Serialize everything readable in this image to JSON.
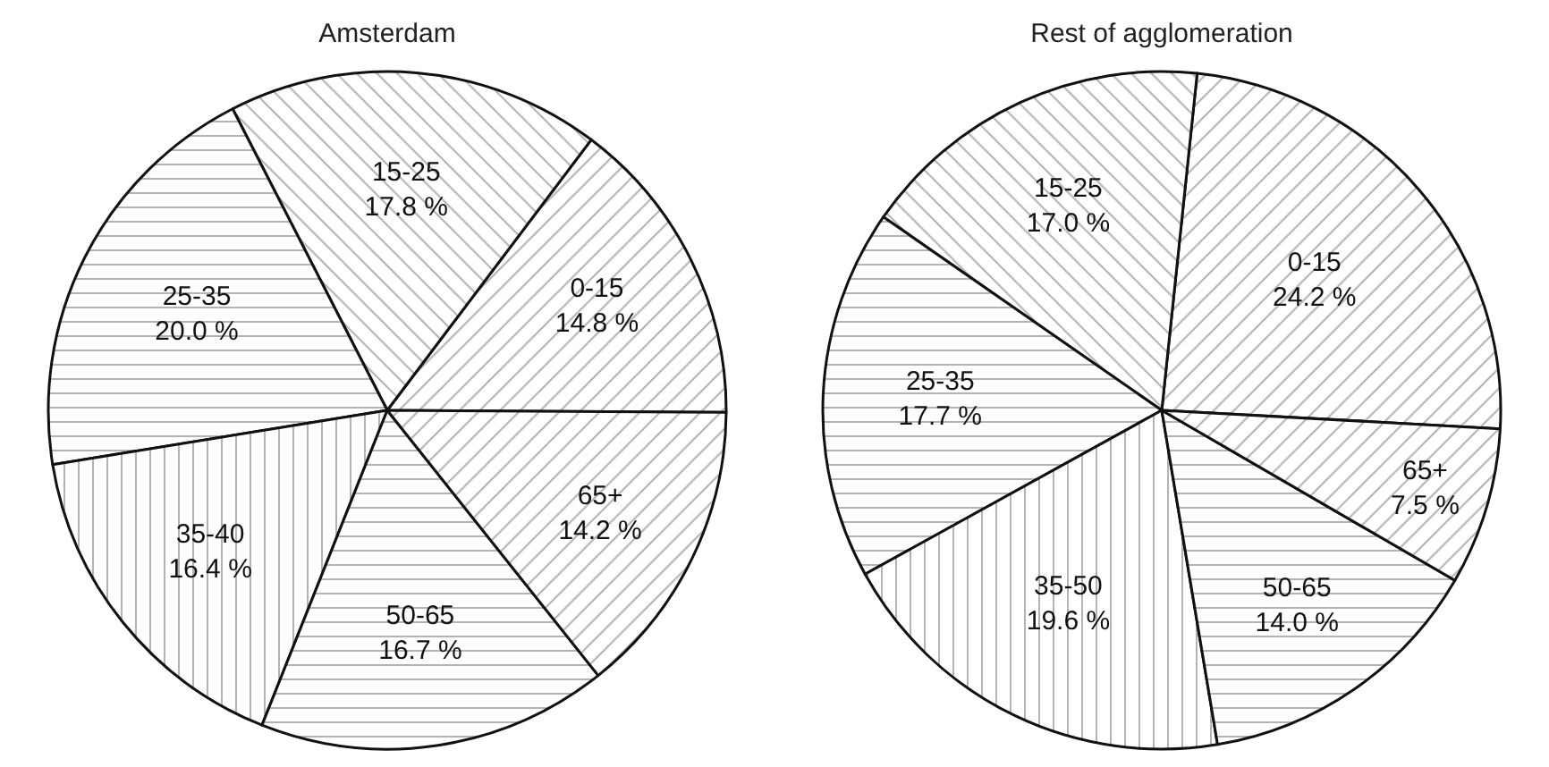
{
  "chart_data": [
    {
      "type": "pie",
      "title": "Amsterdam",
      "categories": [
        "0-15",
        "15-25",
        "25-35",
        "35-40",
        "50-65",
        "65+"
      ],
      "values": [
        14.8,
        17.8,
        20.0,
        16.4,
        16.7,
        14.2
      ],
      "value_labels": [
        "14.8 %",
        "17.8 %",
        "20.0 %",
        "16.4 %",
        "16.7 %",
        "14.2 %"
      ],
      "legend": false
    },
    {
      "type": "pie",
      "title": "Rest of agglomeration",
      "categories": [
        "0-15",
        "15-25",
        "25-35",
        "35-50",
        "50-65",
        "65+"
      ],
      "values": [
        24.2,
        17.0,
        17.7,
        19.6,
        14.0,
        7.5
      ],
      "value_labels": [
        "24.2 %",
        "17.0 %",
        "17.7 %",
        "19.6 %",
        "14.0 %",
        "7.5 %"
      ],
      "legend": false
    }
  ]
}
